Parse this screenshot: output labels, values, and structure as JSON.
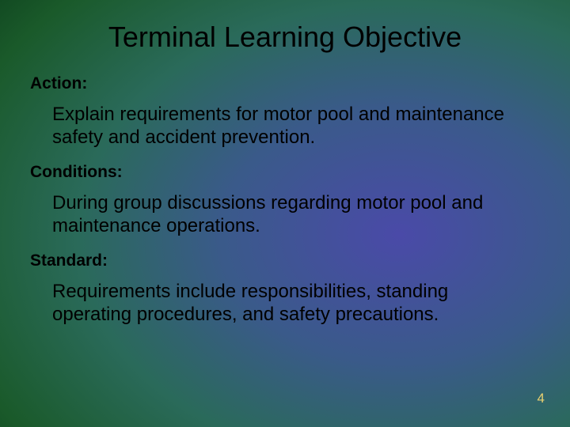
{
  "slide": {
    "title": "Terminal Learning Objective",
    "sections": {
      "action": {
        "label": "Action:",
        "body": "Explain requirements for motor pool and maintenance safety and accident prevention."
      },
      "conditions": {
        "label": "Conditions:",
        "body": "During group discussions regarding motor pool and maintenance operations."
      },
      "standard": {
        "label": "Standard:",
        "body": "Requirements include responsibilities, standing operating procedures, and safety precautions."
      }
    },
    "page_number": "4",
    "style": {
      "background_gradient_colors": [
        "#4a4aa8",
        "#3a5a8a",
        "#2a6a5a",
        "#1a5a2a",
        "#0a3a1a",
        "#041808"
      ],
      "title_fontsize": 36,
      "label_fontsize": 21,
      "body_fontsize": 24,
      "pagenum_color": "#e8d070",
      "text_color": "#000000",
      "font_family": "Arial"
    }
  }
}
